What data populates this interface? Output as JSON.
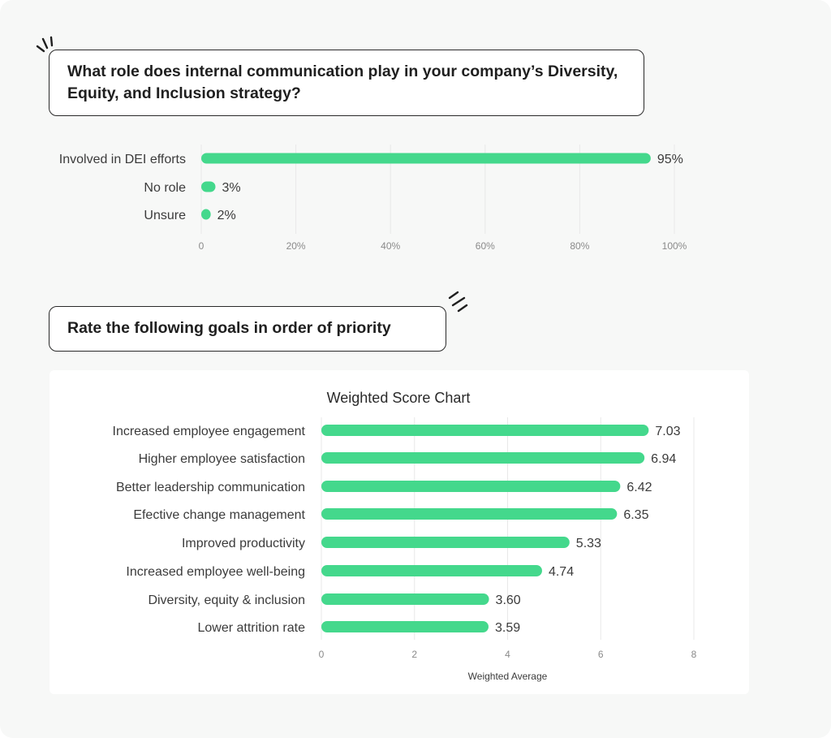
{
  "colors": {
    "bar": "#44d88c",
    "grid": "#e8e8e8",
    "text": "#3b3b3b",
    "tick": "#8a8a8a"
  },
  "question1": "What role does internal communication play in your company’s Diversity, Equity, and Inclusion strategy?",
  "question2": "Rate the following goals in order of priority",
  "chart_data": [
    {
      "type": "bar",
      "orientation": "horizontal",
      "categories": [
        "Involved in DEI efforts",
        "No role",
        "Unsure"
      ],
      "values": [
        95,
        3,
        2
      ],
      "value_labels": [
        "95%",
        "3%",
        "2%"
      ],
      "xlim": [
        0,
        100
      ],
      "xticks": [
        "0",
        "20%",
        "40%",
        "60%",
        "80%",
        "100%"
      ],
      "title": "",
      "xlabel": "",
      "ylabel": "",
      "grid": true
    },
    {
      "type": "bar",
      "orientation": "horizontal",
      "title": "Weighted Score Chart",
      "categories": [
        "Increased employee engagement",
        "Higher employee satisfaction",
        "Better leadership communication",
        "Efective change management",
        "Improved productivity",
        "Increased employee well-being",
        "Diversity, equity & inclusion",
        "Lower attrition rate"
      ],
      "values": [
        7.03,
        6.94,
        6.42,
        6.35,
        5.33,
        4.74,
        3.6,
        3.59
      ],
      "value_labels": [
        "7.03",
        "6.94",
        "6.42",
        "6.35",
        "5.33",
        "4.74",
        "3.60",
        "3.59"
      ],
      "xlim": [
        0,
        8
      ],
      "xticks": [
        "0",
        "2",
        "4",
        "6",
        "8"
      ],
      "xlabel": "Weighted Average",
      "ylabel": "",
      "grid": true
    }
  ]
}
